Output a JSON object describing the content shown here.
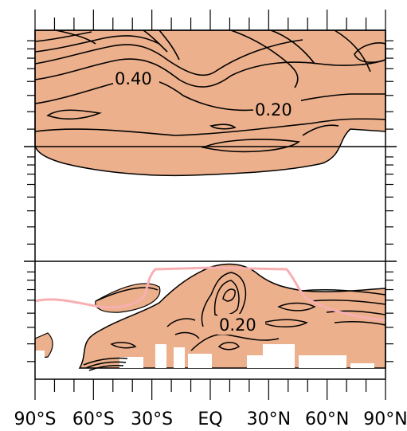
{
  "chart_data": {
    "type": "contour",
    "title": "",
    "xlabel": "",
    "ylabel": "",
    "x_range": [
      "90°S",
      "90°N"
    ],
    "x_tick_labels": [
      "90°S",
      "60°S",
      "30°S",
      "EQ",
      "30°N",
      "60°N",
      "90°N"
    ],
    "contour_labels": [
      "0.40",
      "0.20",
      "0.20"
    ],
    "colors": {
      "fill": "#EDB08C",
      "contour_line": "#000000",
      "highlight_line": "#F7AFB2",
      "frame": "#000000"
    },
    "legend": "none"
  }
}
